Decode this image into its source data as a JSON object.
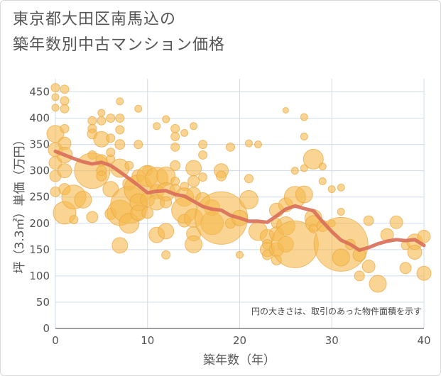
{
  "title_lines": [
    "東京都大田区南馬込の",
    "築年数別中古マンション価格"
  ],
  "chart_data": {
    "type": "scatter",
    "xlabel": "築年数（年）",
    "ylabel": "坪（3.3㎡）単価（万円）",
    "xlim": [
      0,
      40
    ],
    "ylim": [
      0,
      475
    ],
    "xticks": [
      "0",
      "10",
      "20",
      "30",
      "40"
    ],
    "yticks": [
      "0",
      "50",
      "100",
      "150",
      "200",
      "250",
      "300",
      "350",
      "400",
      "450"
    ],
    "grid": true,
    "note": "円の大きさは、取引のあった物件面積を示す",
    "colors": {
      "bubble": "#f5b94f",
      "line": "#d9705a",
      "grid": "#cfdceb",
      "axis": "#666666"
    },
    "trend_line": {
      "x": [
        0,
        1,
        2,
        3,
        4,
        5,
        6,
        7,
        8,
        9,
        10,
        11,
        12,
        13,
        14,
        15,
        16,
        17,
        18,
        19,
        20,
        21,
        22,
        23,
        24,
        25,
        26,
        27,
        28,
        29,
        30,
        31,
        32,
        33,
        34,
        35,
        36,
        37,
        38,
        39,
        40
      ],
      "y": [
        337,
        330,
        323,
        317,
        313,
        316,
        310,
        298,
        285,
        272,
        258,
        261,
        262,
        255,
        252,
        242,
        232,
        227,
        225,
        215,
        210,
        204,
        204,
        202,
        214,
        227,
        233,
        228,
        224,
        203,
        184,
        168,
        160,
        149,
        154,
        161,
        166,
        169,
        167,
        169,
        158
      ]
    },
    "points": [
      {
        "x": 0,
        "y": 458,
        "size": 6
      },
      {
        "x": 0,
        "y": 440,
        "size": 5
      },
      {
        "x": 0,
        "y": 420,
        "size": 5
      },
      {
        "x": 0,
        "y": 370,
        "size": 12
      },
      {
        "x": 0,
        "y": 340,
        "size": 10
      },
      {
        "x": 0,
        "y": 315,
        "size": 9
      },
      {
        "x": 0,
        "y": 290,
        "size": 8
      },
      {
        "x": 0,
        "y": 260,
        "size": 7
      },
      {
        "x": 1,
        "y": 455,
        "size": 6
      },
      {
        "x": 1,
        "y": 433,
        "size": 6
      },
      {
        "x": 1,
        "y": 418,
        "size": 6
      },
      {
        "x": 1,
        "y": 380,
        "size": 6
      },
      {
        "x": 1,
        "y": 352,
        "size": 9
      },
      {
        "x": 1,
        "y": 330,
        "size": 11
      },
      {
        "x": 1,
        "y": 300,
        "size": 10
      },
      {
        "x": 1,
        "y": 265,
        "size": 8
      },
      {
        "x": 1,
        "y": 220,
        "size": 16
      },
      {
        "x": 2,
        "y": 250,
        "size": 17
      },
      {
        "x": 2,
        "y": 207,
        "size": 6
      },
      {
        "x": 3,
        "y": 245,
        "size": 12
      },
      {
        "x": 4,
        "y": 395,
        "size": 6
      },
      {
        "x": 4,
        "y": 380,
        "size": 6
      },
      {
        "x": 4,
        "y": 370,
        "size": 7
      },
      {
        "x": 4,
        "y": 330,
        "size": 6
      },
      {
        "x": 4,
        "y": 300,
        "size": 25
      },
      {
        "x": 4,
        "y": 212,
        "size": 8
      },
      {
        "x": 5,
        "y": 410,
        "size": 5
      },
      {
        "x": 5,
        "y": 395,
        "size": 6
      },
      {
        "x": 5,
        "y": 360,
        "size": 11
      },
      {
        "x": 5,
        "y": 320,
        "size": 8
      },
      {
        "x": 5,
        "y": 300,
        "size": 7
      },
      {
        "x": 5,
        "y": 290,
        "size": 7
      },
      {
        "x": 6,
        "y": 400,
        "size": 6
      },
      {
        "x": 6,
        "y": 362,
        "size": 6
      },
      {
        "x": 6,
        "y": 335,
        "size": 6
      },
      {
        "x": 6,
        "y": 322,
        "size": 6
      },
      {
        "x": 6,
        "y": 265,
        "size": 11
      },
      {
        "x": 6,
        "y": 218,
        "size": 8
      },
      {
        "x": 7,
        "y": 432,
        "size": 5
      },
      {
        "x": 7,
        "y": 400,
        "size": 6
      },
      {
        "x": 7,
        "y": 378,
        "size": 6
      },
      {
        "x": 7,
        "y": 350,
        "size": 7
      },
      {
        "x": 7,
        "y": 305,
        "size": 13
      },
      {
        "x": 7,
        "y": 220,
        "size": 18
      },
      {
        "x": 7,
        "y": 158,
        "size": 11
      },
      {
        "x": 8,
        "y": 310,
        "size": 6
      },
      {
        "x": 8,
        "y": 275,
        "size": 9
      },
      {
        "x": 8,
        "y": 235,
        "size": 26
      },
      {
        "x": 8,
        "y": 200,
        "size": 14
      },
      {
        "x": 9,
        "y": 418,
        "size": 5
      },
      {
        "x": 9,
        "y": 350,
        "size": 6
      },
      {
        "x": 9,
        "y": 290,
        "size": 9
      },
      {
        "x": 9,
        "y": 265,
        "size": 20
      },
      {
        "x": 9,
        "y": 240,
        "size": 12
      },
      {
        "x": 9,
        "y": 220,
        "size": 11
      },
      {
        "x": 10,
        "y": 300,
        "size": 7
      },
      {
        "x": 10,
        "y": 290,
        "size": 15
      },
      {
        "x": 10,
        "y": 245,
        "size": 10
      },
      {
        "x": 10,
        "y": 220,
        "size": 8
      },
      {
        "x": 11,
        "y": 385,
        "size": 5
      },
      {
        "x": 11,
        "y": 285,
        "size": 16
      },
      {
        "x": 11,
        "y": 260,
        "size": 10
      },
      {
        "x": 11,
        "y": 240,
        "size": 11
      },
      {
        "x": 11,
        "y": 178,
        "size": 11
      },
      {
        "x": 12,
        "y": 398,
        "size": 5
      },
      {
        "x": 12,
        "y": 290,
        "size": 13
      },
      {
        "x": 12,
        "y": 260,
        "size": 13
      },
      {
        "x": 12,
        "y": 240,
        "size": 8
      },
      {
        "x": 12,
        "y": 185,
        "size": 11
      },
      {
        "x": 12,
        "y": 140,
        "size": 6
      },
      {
        "x": 13,
        "y": 380,
        "size": 6
      },
      {
        "x": 13,
        "y": 365,
        "size": 6
      },
      {
        "x": 13,
        "y": 345,
        "size": 6
      },
      {
        "x": 13,
        "y": 310,
        "size": 7
      },
      {
        "x": 13,
        "y": 280,
        "size": 6
      },
      {
        "x": 13,
        "y": 265,
        "size": 7
      },
      {
        "x": 14,
        "y": 372,
        "size": 5
      },
      {
        "x": 14,
        "y": 270,
        "size": 6
      },
      {
        "x": 14,
        "y": 250,
        "size": 13
      },
      {
        "x": 14,
        "y": 225,
        "size": 18
      },
      {
        "x": 14,
        "y": 205,
        "size": 9
      },
      {
        "x": 15,
        "y": 385,
        "size": 5
      },
      {
        "x": 15,
        "y": 305,
        "size": 11
      },
      {
        "x": 15,
        "y": 280,
        "size": 8
      },
      {
        "x": 15,
        "y": 255,
        "size": 10
      },
      {
        "x": 15,
        "y": 210,
        "size": 13
      },
      {
        "x": 15,
        "y": 180,
        "size": 10
      },
      {
        "x": 15,
        "y": 160,
        "size": 12
      },
      {
        "x": 16,
        "y": 350,
        "size": 6
      },
      {
        "x": 16,
        "y": 330,
        "size": 6
      },
      {
        "x": 16,
        "y": 288,
        "size": 6
      },
      {
        "x": 16,
        "y": 245,
        "size": 10
      },
      {
        "x": 17,
        "y": 230,
        "size": 11
      },
      {
        "x": 17,
        "y": 200,
        "size": 16
      },
      {
        "x": 18,
        "y": 300,
        "size": 10
      },
      {
        "x": 18,
        "y": 290,
        "size": 7
      },
      {
        "x": 18,
        "y": 210,
        "size": 37
      },
      {
        "x": 19,
        "y": 345,
        "size": 6
      },
      {
        "x": 19,
        "y": 200,
        "size": 7
      },
      {
        "x": 20,
        "y": 210,
        "size": 11
      },
      {
        "x": 20,
        "y": 140,
        "size": 5
      },
      {
        "x": 21,
        "y": 352,
        "size": 5
      },
      {
        "x": 21,
        "y": 285,
        "size": 6
      },
      {
        "x": 21,
        "y": 245,
        "size": 13
      },
      {
        "x": 22,
        "y": 350,
        "size": 5
      },
      {
        "x": 22,
        "y": 185,
        "size": 13
      },
      {
        "x": 23,
        "y": 175,
        "size": 10
      },
      {
        "x": 23,
        "y": 160,
        "size": 7
      },
      {
        "x": 23,
        "y": 150,
        "size": 10
      },
      {
        "x": 23,
        "y": 140,
        "size": 7
      },
      {
        "x": 24,
        "y": 225,
        "size": 10
      },
      {
        "x": 24,
        "y": 200,
        "size": 7
      },
      {
        "x": 24,
        "y": 180,
        "size": 10
      },
      {
        "x": 24,
        "y": 150,
        "size": 10
      },
      {
        "x": 24,
        "y": 130,
        "size": 7
      },
      {
        "x": 25,
        "y": 415,
        "size": 4
      },
      {
        "x": 25,
        "y": 235,
        "size": 10
      },
      {
        "x": 25,
        "y": 195,
        "size": 13
      },
      {
        "x": 25,
        "y": 160,
        "size": 11
      },
      {
        "x": 26,
        "y": 300,
        "size": 5
      },
      {
        "x": 26,
        "y": 250,
        "size": 15
      },
      {
        "x": 26,
        "y": 160,
        "size": 33
      },
      {
        "x": 27,
        "y": 402,
        "size": 5
      },
      {
        "x": 27,
        "y": 365,
        "size": 5
      },
      {
        "x": 27,
        "y": 305,
        "size": 5
      },
      {
        "x": 27,
        "y": 255,
        "size": 12
      },
      {
        "x": 28,
        "y": 322,
        "size": 14
      },
      {
        "x": 28,
        "y": 210,
        "size": 12
      },
      {
        "x": 28,
        "y": 200,
        "size": 11
      },
      {
        "x": 28,
        "y": 190,
        "size": 6
      },
      {
        "x": 29,
        "y": 308,
        "size": 5
      },
      {
        "x": 29,
        "y": 280,
        "size": 5
      },
      {
        "x": 29,
        "y": 195,
        "size": 8
      },
      {
        "x": 30,
        "y": 265,
        "size": 5
      },
      {
        "x": 30,
        "y": 200,
        "size": 5
      },
      {
        "x": 31,
        "y": 268,
        "size": 5
      },
      {
        "x": 31,
        "y": 222,
        "size": 5
      },
      {
        "x": 31,
        "y": 160,
        "size": 38
      },
      {
        "x": 31,
        "y": 135,
        "size": 12
      },
      {
        "x": 32,
        "y": 160,
        "size": 7
      },
      {
        "x": 33,
        "y": 140,
        "size": 9
      },
      {
        "x": 33,
        "y": 100,
        "size": 7
      },
      {
        "x": 34,
        "y": 205,
        "size": 7
      },
      {
        "x": 34,
        "y": 118,
        "size": 9
      },
      {
        "x": 35,
        "y": 85,
        "size": 12
      },
      {
        "x": 36,
        "y": 178,
        "size": 9
      },
      {
        "x": 37,
        "y": 202,
        "size": 9
      },
      {
        "x": 38,
        "y": 158,
        "size": 6
      },
      {
        "x": 38,
        "y": 115,
        "size": 8
      },
      {
        "x": 39,
        "y": 165,
        "size": 11
      },
      {
        "x": 39,
        "y": 145,
        "size": 10
      },
      {
        "x": 40,
        "y": 175,
        "size": 9
      },
      {
        "x": 40,
        "y": 105,
        "size": 10
      }
    ]
  }
}
